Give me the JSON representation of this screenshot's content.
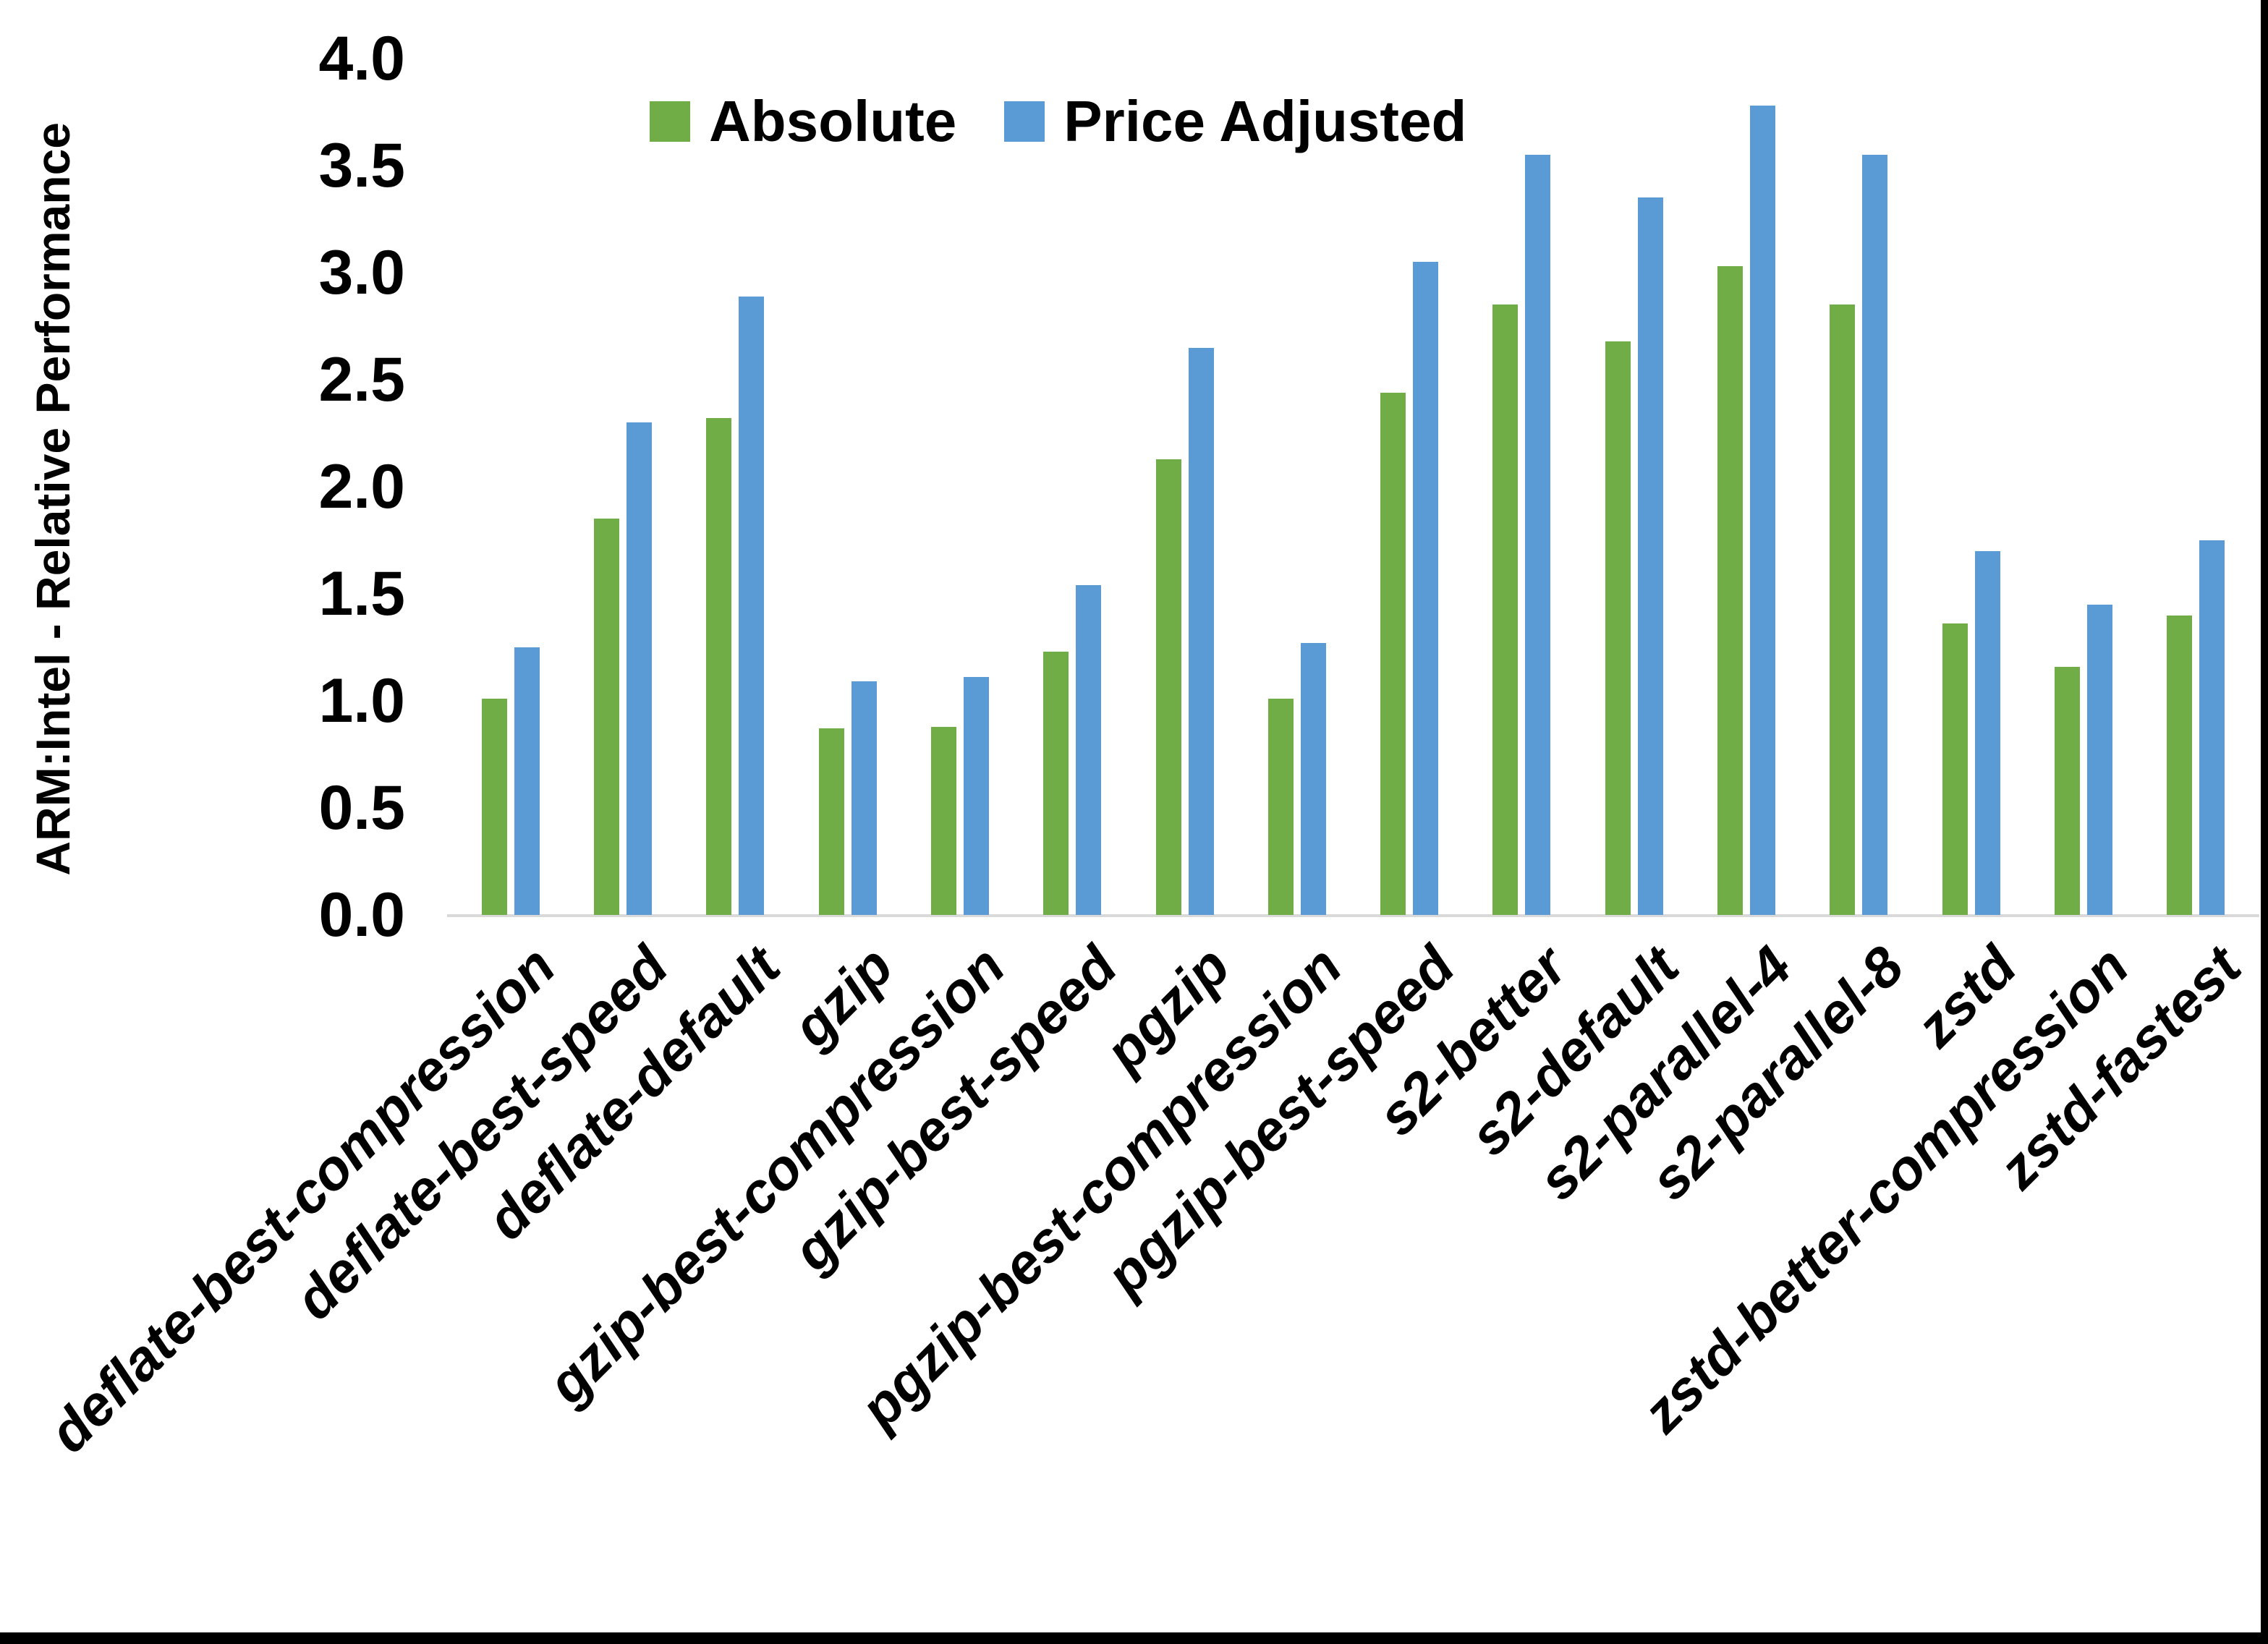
{
  "y_axis": {
    "title": "ARM:Intel - Relative Performance",
    "ticks": [
      "4.0",
      "3.5",
      "3.0",
      "2.5",
      "2.0",
      "1.5",
      "1.0",
      "0.5",
      "0.0"
    ]
  },
  "legend": {
    "items": [
      {
        "label": "Absolute",
        "color": "#70AD47"
      },
      {
        "label": "Price Adjusted",
        "color": "#5B9BD5"
      }
    ]
  },
  "chart_data": {
    "type": "bar",
    "title": "",
    "xlabel": "",
    "ylabel": "ARM:Intel - Relative Performance",
    "ylim": [
      0,
      4
    ],
    "ytick_step": 0.5,
    "grid": false,
    "legend_position": "top-center",
    "categories": [
      "deflate-best-compression",
      "deflate-best-speed",
      "deflate-default",
      "gzip",
      "gzip-best-compression",
      "gzip-best-speed",
      "pgzip",
      "pgzip-best-compression",
      "pgzip-best-speed",
      "s2-better",
      "s2-default",
      "s2-parallel-4",
      "s2-parallel-8",
      "zstd",
      "zstd-better-compression",
      "zstd-fastest"
    ],
    "series": [
      {
        "name": "Absolute",
        "color": "#70AD47",
        "values": [
          1.01,
          1.85,
          2.32,
          0.87,
          0.88,
          1.23,
          2.13,
          1.01,
          2.44,
          2.85,
          2.68,
          3.03,
          2.85,
          1.36,
          1.16,
          1.4
        ]
      },
      {
        "name": "Price Adjusted",
        "color": "#5B9BD5",
        "values": [
          1.25,
          2.3,
          2.89,
          1.09,
          1.11,
          1.54,
          2.65,
          1.27,
          3.05,
          3.55,
          3.35,
          3.78,
          3.55,
          1.7,
          1.45,
          1.75
        ]
      }
    ]
  },
  "colors": {
    "background": "#FFFFFF",
    "axis_line": "#D9D9D9",
    "border": "#000000",
    "text": "#000000"
  }
}
